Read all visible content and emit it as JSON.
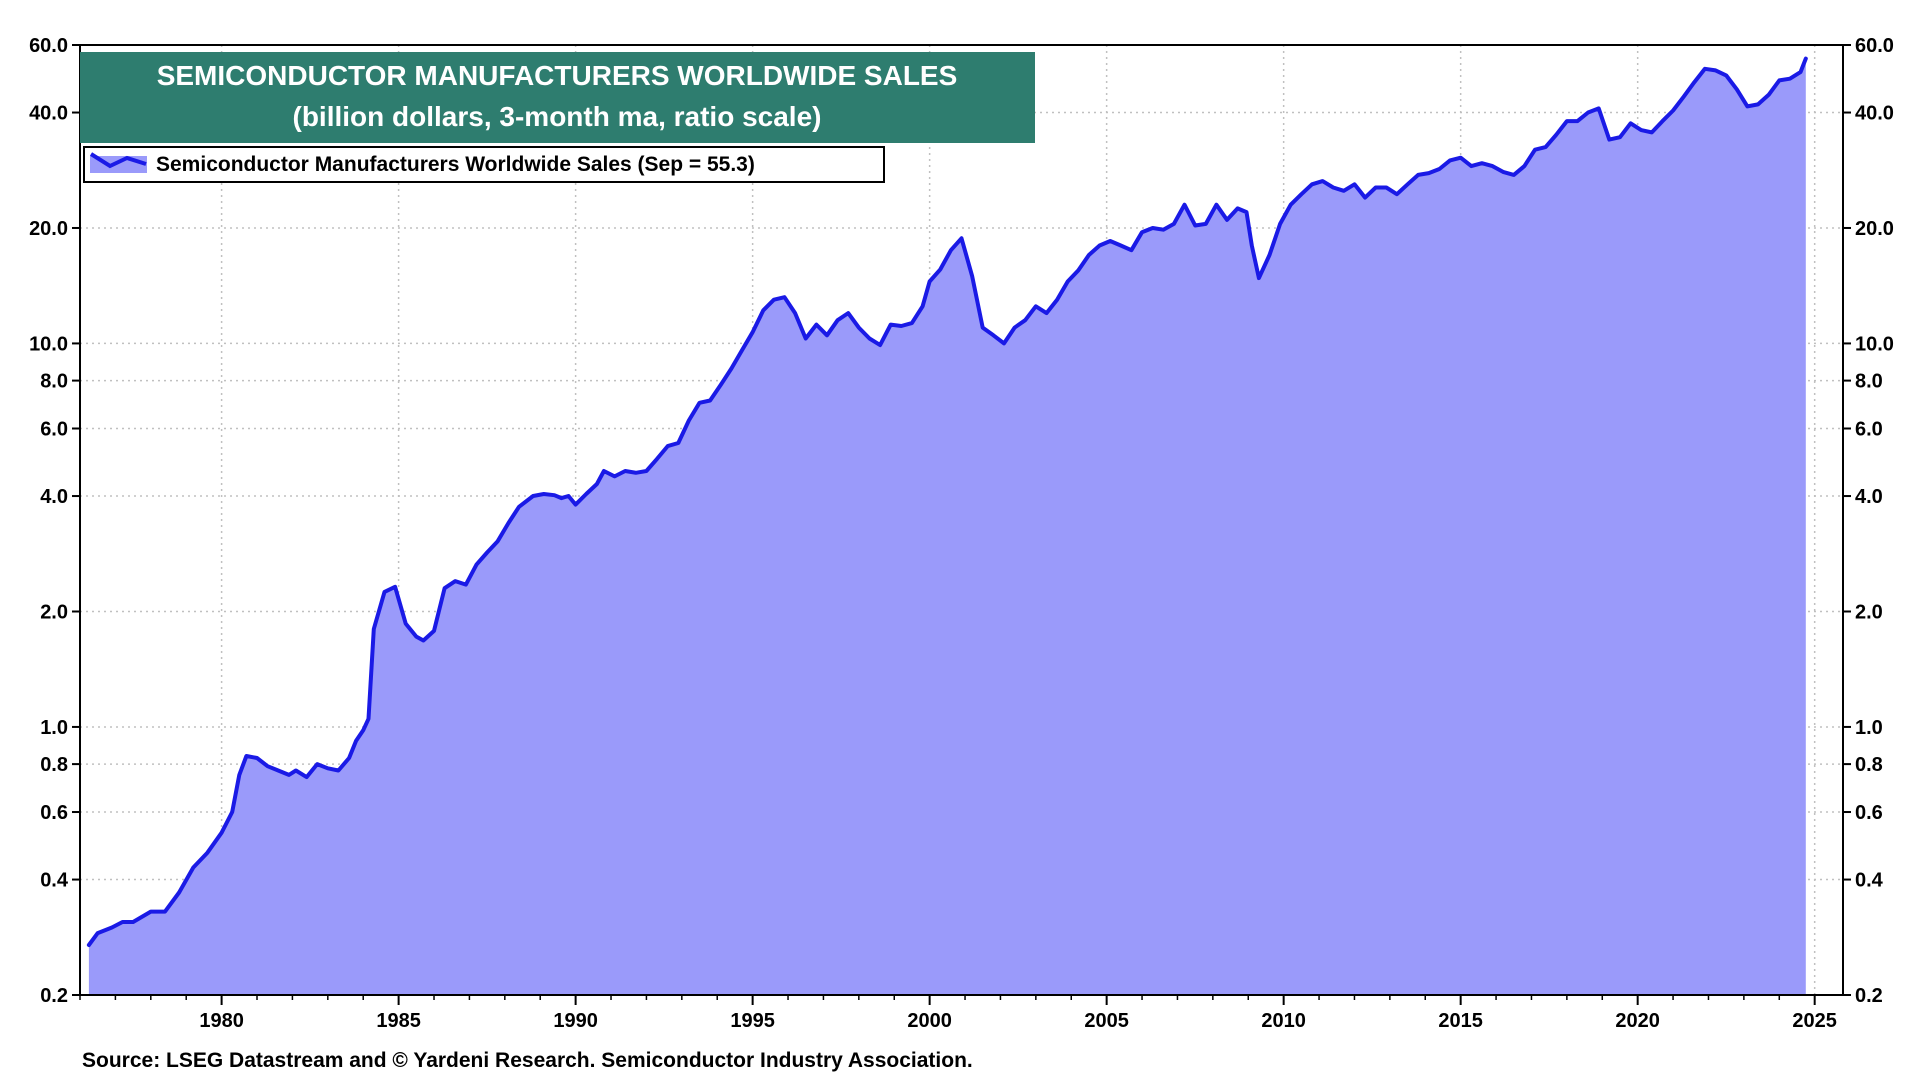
{
  "chart_data": {
    "type": "area",
    "title": "SEMICONDUCTOR MANUFACTURERS WORLDWIDE SALES",
    "subtitle": "(billion dollars, 3-month ma, ratio scale)",
    "legend": {
      "entries": [
        "Semiconductor Manufacturers Worldwide Sales (Sep = 55.3)"
      ],
      "placement": "top-left"
    },
    "source": "Source: LSEG Datastream and © Yardeni Research. Semiconductor Industry Association.",
    "y_scale": "log",
    "ylim": [
      0.2,
      60.0
    ],
    "xlim": [
      1976.0,
      2025.8
    ],
    "y_ticks": [
      0.2,
      0.4,
      0.6,
      0.8,
      1.0,
      2.0,
      4.0,
      6.0,
      8.0,
      10.0,
      20.0,
      40.0,
      60.0
    ],
    "y_tick_labels": [
      "0.2",
      "0.4",
      "0.6",
      "0.8",
      "1.0",
      "2.0",
      "4.0",
      "6.0",
      "8.0",
      "10.0",
      "20.0",
      "40.0",
      "60.0"
    ],
    "x_ticks": [
      1980,
      1985,
      1990,
      1995,
      2000,
      2005,
      2010,
      2015,
      2020,
      2025
    ],
    "x_tick_labels": [
      "1980",
      "1985",
      "1990",
      "1995",
      "2000",
      "2005",
      "2010",
      "2015",
      "2020",
      "2025"
    ],
    "grid": true,
    "colors": {
      "line": "#1a1ae6",
      "fill": "#9a9afa",
      "title_bg": "#2e7d6f",
      "grid": "#c0c0c0"
    },
    "series": [
      {
        "name": "Semiconductor Manufacturers Worldwide Sales",
        "x": [
          1976.25,
          1976.5,
          1976.9,
          1977.2,
          1977.5,
          1978.0,
          1978.4,
          1978.8,
          1979.2,
          1979.6,
          1980.0,
          1980.3,
          1980.5,
          1980.7,
          1981.0,
          1981.3,
          1981.6,
          1981.9,
          1982.1,
          1982.4,
          1982.7,
          1983.0,
          1983.3,
          1983.6,
          1983.8,
          1984.0,
          1984.15,
          1984.3,
          1984.6,
          1984.9,
          1985.2,
          1985.5,
          1985.7,
          1986.0,
          1986.3,
          1986.6,
          1986.9,
          1987.2,
          1987.5,
          1987.8,
          1988.1,
          1988.4,
          1988.8,
          1989.1,
          1989.4,
          1989.6,
          1989.8,
          1990.0,
          1990.3,
          1990.6,
          1990.8,
          1991.1,
          1991.4,
          1991.7,
          1992.0,
          1992.3,
          1992.6,
          1992.9,
          1993.2,
          1993.5,
          1993.8,
          1994.1,
          1994.4,
          1994.7,
          1995.0,
          1995.3,
          1995.6,
          1995.9,
          1996.2,
          1996.5,
          1996.8,
          1997.1,
          1997.4,
          1997.7,
          1998.0,
          1998.3,
          1998.6,
          1998.9,
          1999.2,
          1999.5,
          1999.8,
          2000.0,
          2000.3,
          2000.6,
          2000.9,
          2001.2,
          2001.5,
          2001.8,
          2002.1,
          2002.4,
          2002.7,
          2003.0,
          2003.3,
          2003.6,
          2003.9,
          2004.2,
          2004.5,
          2004.8,
          2005.1,
          2005.4,
          2005.7,
          2006.0,
          2006.3,
          2006.6,
          2006.9,
          2007.2,
          2007.5,
          2007.8,
          2008.1,
          2008.4,
          2008.7,
          2008.95,
          2009.1,
          2009.3,
          2009.6,
          2009.9,
          2010.2,
          2010.5,
          2010.8,
          2011.1,
          2011.4,
          2011.7,
          2012.0,
          2012.3,
          2012.6,
          2012.9,
          2013.2,
          2013.5,
          2013.8,
          2014.1,
          2014.4,
          2014.7,
          2015.0,
          2015.3,
          2015.6,
          2015.9,
          2016.2,
          2016.5,
          2016.8,
          2017.1,
          2017.4,
          2017.7,
          2018.0,
          2018.3,
          2018.6,
          2018.9,
          2019.2,
          2019.5,
          2019.8,
          2020.1,
          2020.4,
          2020.7,
          2021.0,
          2021.3,
          2021.6,
          2021.9,
          2022.2,
          2022.5,
          2022.8,
          2023.1,
          2023.4,
          2023.7,
          2024.0,
          2024.3,
          2024.6,
          2024.75
        ],
        "values": [
          0.27,
          0.29,
          0.3,
          0.31,
          0.31,
          0.33,
          0.33,
          0.37,
          0.43,
          0.47,
          0.53,
          0.6,
          0.75,
          0.84,
          0.83,
          0.79,
          0.77,
          0.75,
          0.77,
          0.74,
          0.8,
          0.78,
          0.77,
          0.83,
          0.92,
          0.98,
          1.05,
          1.8,
          2.25,
          2.32,
          1.86,
          1.72,
          1.68,
          1.78,
          2.3,
          2.4,
          2.35,
          2.65,
          2.85,
          3.05,
          3.4,
          3.75,
          4.0,
          4.05,
          4.02,
          3.95,
          4.0,
          3.8,
          4.05,
          4.3,
          4.65,
          4.5,
          4.65,
          4.6,
          4.65,
          5.0,
          5.4,
          5.5,
          6.3,
          7.0,
          7.1,
          7.8,
          8.6,
          9.6,
          10.7,
          12.2,
          13.0,
          13.2,
          12.0,
          10.3,
          11.2,
          10.5,
          11.5,
          12.0,
          11.0,
          10.3,
          9.9,
          11.2,
          11.1,
          11.3,
          12.5,
          14.5,
          15.6,
          17.5,
          18.8,
          15.0,
          11.0,
          10.5,
          10.0,
          11.0,
          11.5,
          12.5,
          12.0,
          13.0,
          14.5,
          15.5,
          17.0,
          18.0,
          18.5,
          18.0,
          17.5,
          19.5,
          20.0,
          19.8,
          20.5,
          23.0,
          20.3,
          20.5,
          23.0,
          21.0,
          22.5,
          22.0,
          18.0,
          14.8,
          17.0,
          20.5,
          23.0,
          24.5,
          26.0,
          26.5,
          25.5,
          25.0,
          26.0,
          24.0,
          25.5,
          25.5,
          24.5,
          26.0,
          27.5,
          27.8,
          28.5,
          30.0,
          30.5,
          29.0,
          29.5,
          29.0,
          28.0,
          27.5,
          29.0,
          32.0,
          32.5,
          35.0,
          38.0,
          38.0,
          40.0,
          41.0,
          34.0,
          34.5,
          37.5,
          36.0,
          35.5,
          38.0,
          40.5,
          44.0,
          48.0,
          52.0,
          51.5,
          50.0,
          46.0,
          41.5,
          42.0,
          44.5,
          48.5,
          49.0,
          51.0,
          55.3
        ]
      }
    ]
  }
}
